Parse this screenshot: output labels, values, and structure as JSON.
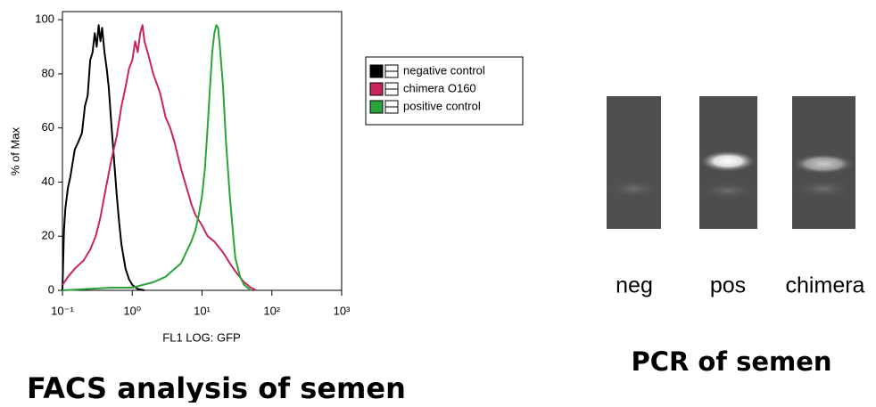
{
  "chart_data": {
    "type": "line",
    "x_label": "FL1 LOG: GFP",
    "y_label": "% of Max",
    "log_x": true,
    "xlim": [
      0.1,
      1000
    ],
    "ylim": [
      0,
      103
    ],
    "xticks": [
      {
        "value": 0.1,
        "label": "10⁻¹"
      },
      {
        "value": 1,
        "label": "10⁰"
      },
      {
        "value": 10,
        "label": "10¹"
      },
      {
        "value": 100,
        "label": "10²"
      },
      {
        "value": 1000,
        "label": "10³"
      }
    ],
    "yticks": [
      0,
      20,
      40,
      60,
      80,
      100
    ],
    "series": [
      {
        "name": "negative control",
        "color": "#000000",
        "x": [
          0.1,
          0.105,
          0.11,
          0.12,
          0.13,
          0.15,
          0.17,
          0.19,
          0.21,
          0.23,
          0.25,
          0.27,
          0.29,
          0.31,
          0.33,
          0.35,
          0.37,
          0.4,
          0.43,
          0.46,
          0.5,
          0.55,
          0.6,
          0.65,
          0.7,
          0.8,
          0.9,
          1.0,
          1.2,
          1.5
        ],
        "values": [
          0,
          22,
          30,
          38,
          42,
          52,
          55,
          58,
          68,
          72,
          85,
          88,
          95,
          90,
          98,
          92,
          97,
          88,
          82,
          75,
          62,
          48,
          35,
          25,
          17,
          8,
          4,
          2,
          0.5,
          0
        ]
      },
      {
        "name": "chimera O160",
        "color": "#c8245e",
        "x": [
          0.1,
          0.12,
          0.15,
          0.2,
          0.25,
          0.3,
          0.35,
          0.4,
          0.5,
          0.6,
          0.7,
          0.8,
          0.9,
          1.0,
          1.1,
          1.2,
          1.3,
          1.4,
          1.5,
          1.7,
          2,
          2.5,
          3,
          3.5,
          4,
          5,
          6,
          7,
          8,
          10,
          12,
          15,
          20,
          25,
          30,
          40,
          50,
          60
        ],
        "values": [
          2,
          5,
          8,
          11,
          15,
          20,
          27,
          35,
          48,
          57,
          68,
          75,
          82,
          85,
          92,
          88,
          95,
          98,
          92,
          87,
          80,
          73,
          64,
          60,
          55,
          45,
          38,
          32,
          28,
          24,
          20,
          18,
          14,
          10,
          7,
          3,
          1,
          0
        ]
      },
      {
        "name": "positive control",
        "color": "#2aa33a",
        "x": [
          0.1,
          0.5,
          1,
          2,
          3,
          5,
          7,
          8,
          9,
          10,
          11,
          12,
          13,
          14,
          15,
          16,
          17,
          18,
          20,
          22,
          25,
          28,
          30,
          35,
          40,
          50
        ],
        "values": [
          0,
          1,
          1,
          3,
          5,
          10,
          18,
          22,
          28,
          35,
          45,
          60,
          75,
          88,
          95,
          98,
          97,
          90,
          75,
          55,
          35,
          20,
          12,
          5,
          2,
          0
        ]
      }
    ]
  },
  "facs_caption": "FACS analysis of semen",
  "gel": {
    "lanes": [
      "neg",
      "pos",
      "chimera"
    ],
    "caption": "PCR of semen"
  }
}
